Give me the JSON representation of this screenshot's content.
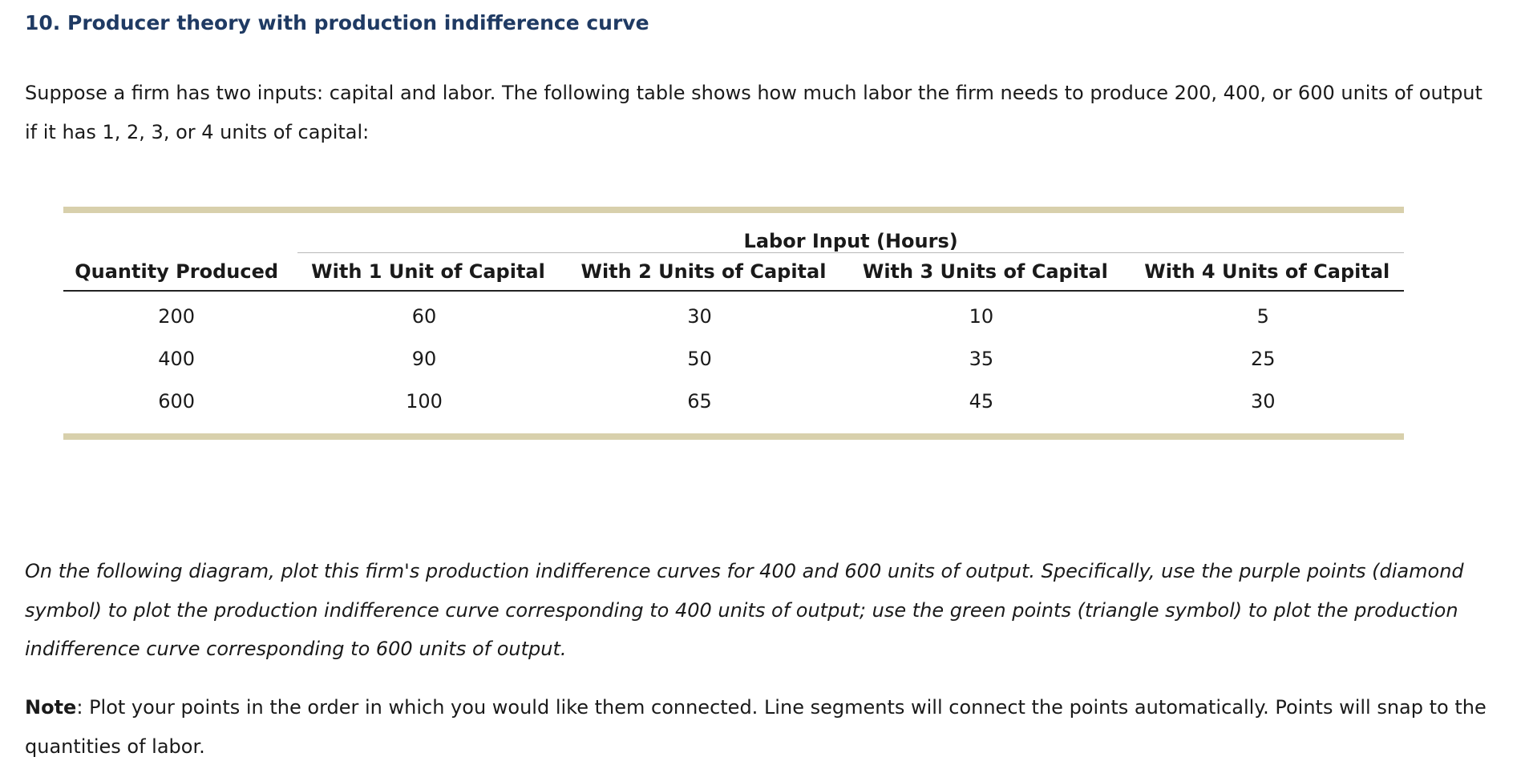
{
  "heading": {
    "title": "10. Producer theory with production indifference curve"
  },
  "intro": {
    "text": "Suppose a firm has two inputs: capital and labor. The following table shows how much labor the firm needs to produce 200, 400, or 600 units of output if it has 1, 2, 3, or 4 units of capital:"
  },
  "table": {
    "group_header": "Labor Input (Hours)",
    "columns": [
      "Quantity Produced",
      "With 1 Unit of Capital",
      "With 2 Units of Capital",
      "With 3 Units of Capital",
      "With 4 Units of Capital"
    ],
    "rows": [
      [
        "200",
        "60",
        "30",
        "10",
        "5"
      ],
      [
        "400",
        "90",
        "50",
        "35",
        "25"
      ],
      [
        "600",
        "100",
        "65",
        "45",
        "30"
      ]
    ],
    "border_color": "#d8d0ac"
  },
  "instructions": {
    "text": "On the following diagram, plot this firm's production indifference curves for 400 and 600 units of output. Specifically, use the purple points (diamond symbol) to plot the production indifference curve corresponding to 400 units of output; use the green points (triangle symbol) to plot the production indifference curve corresponding to 600 units of output."
  },
  "note": {
    "label": "Note",
    "separator": ":",
    "text": "Plot your points in the order in which you would like them connected. Line segments will connect the points automatically. Points will snap to the quantities of labor."
  },
  "colors": {
    "title": "#1f3a63",
    "text": "#1a1a1a",
    "table_bar": "#d8d0ac"
  }
}
